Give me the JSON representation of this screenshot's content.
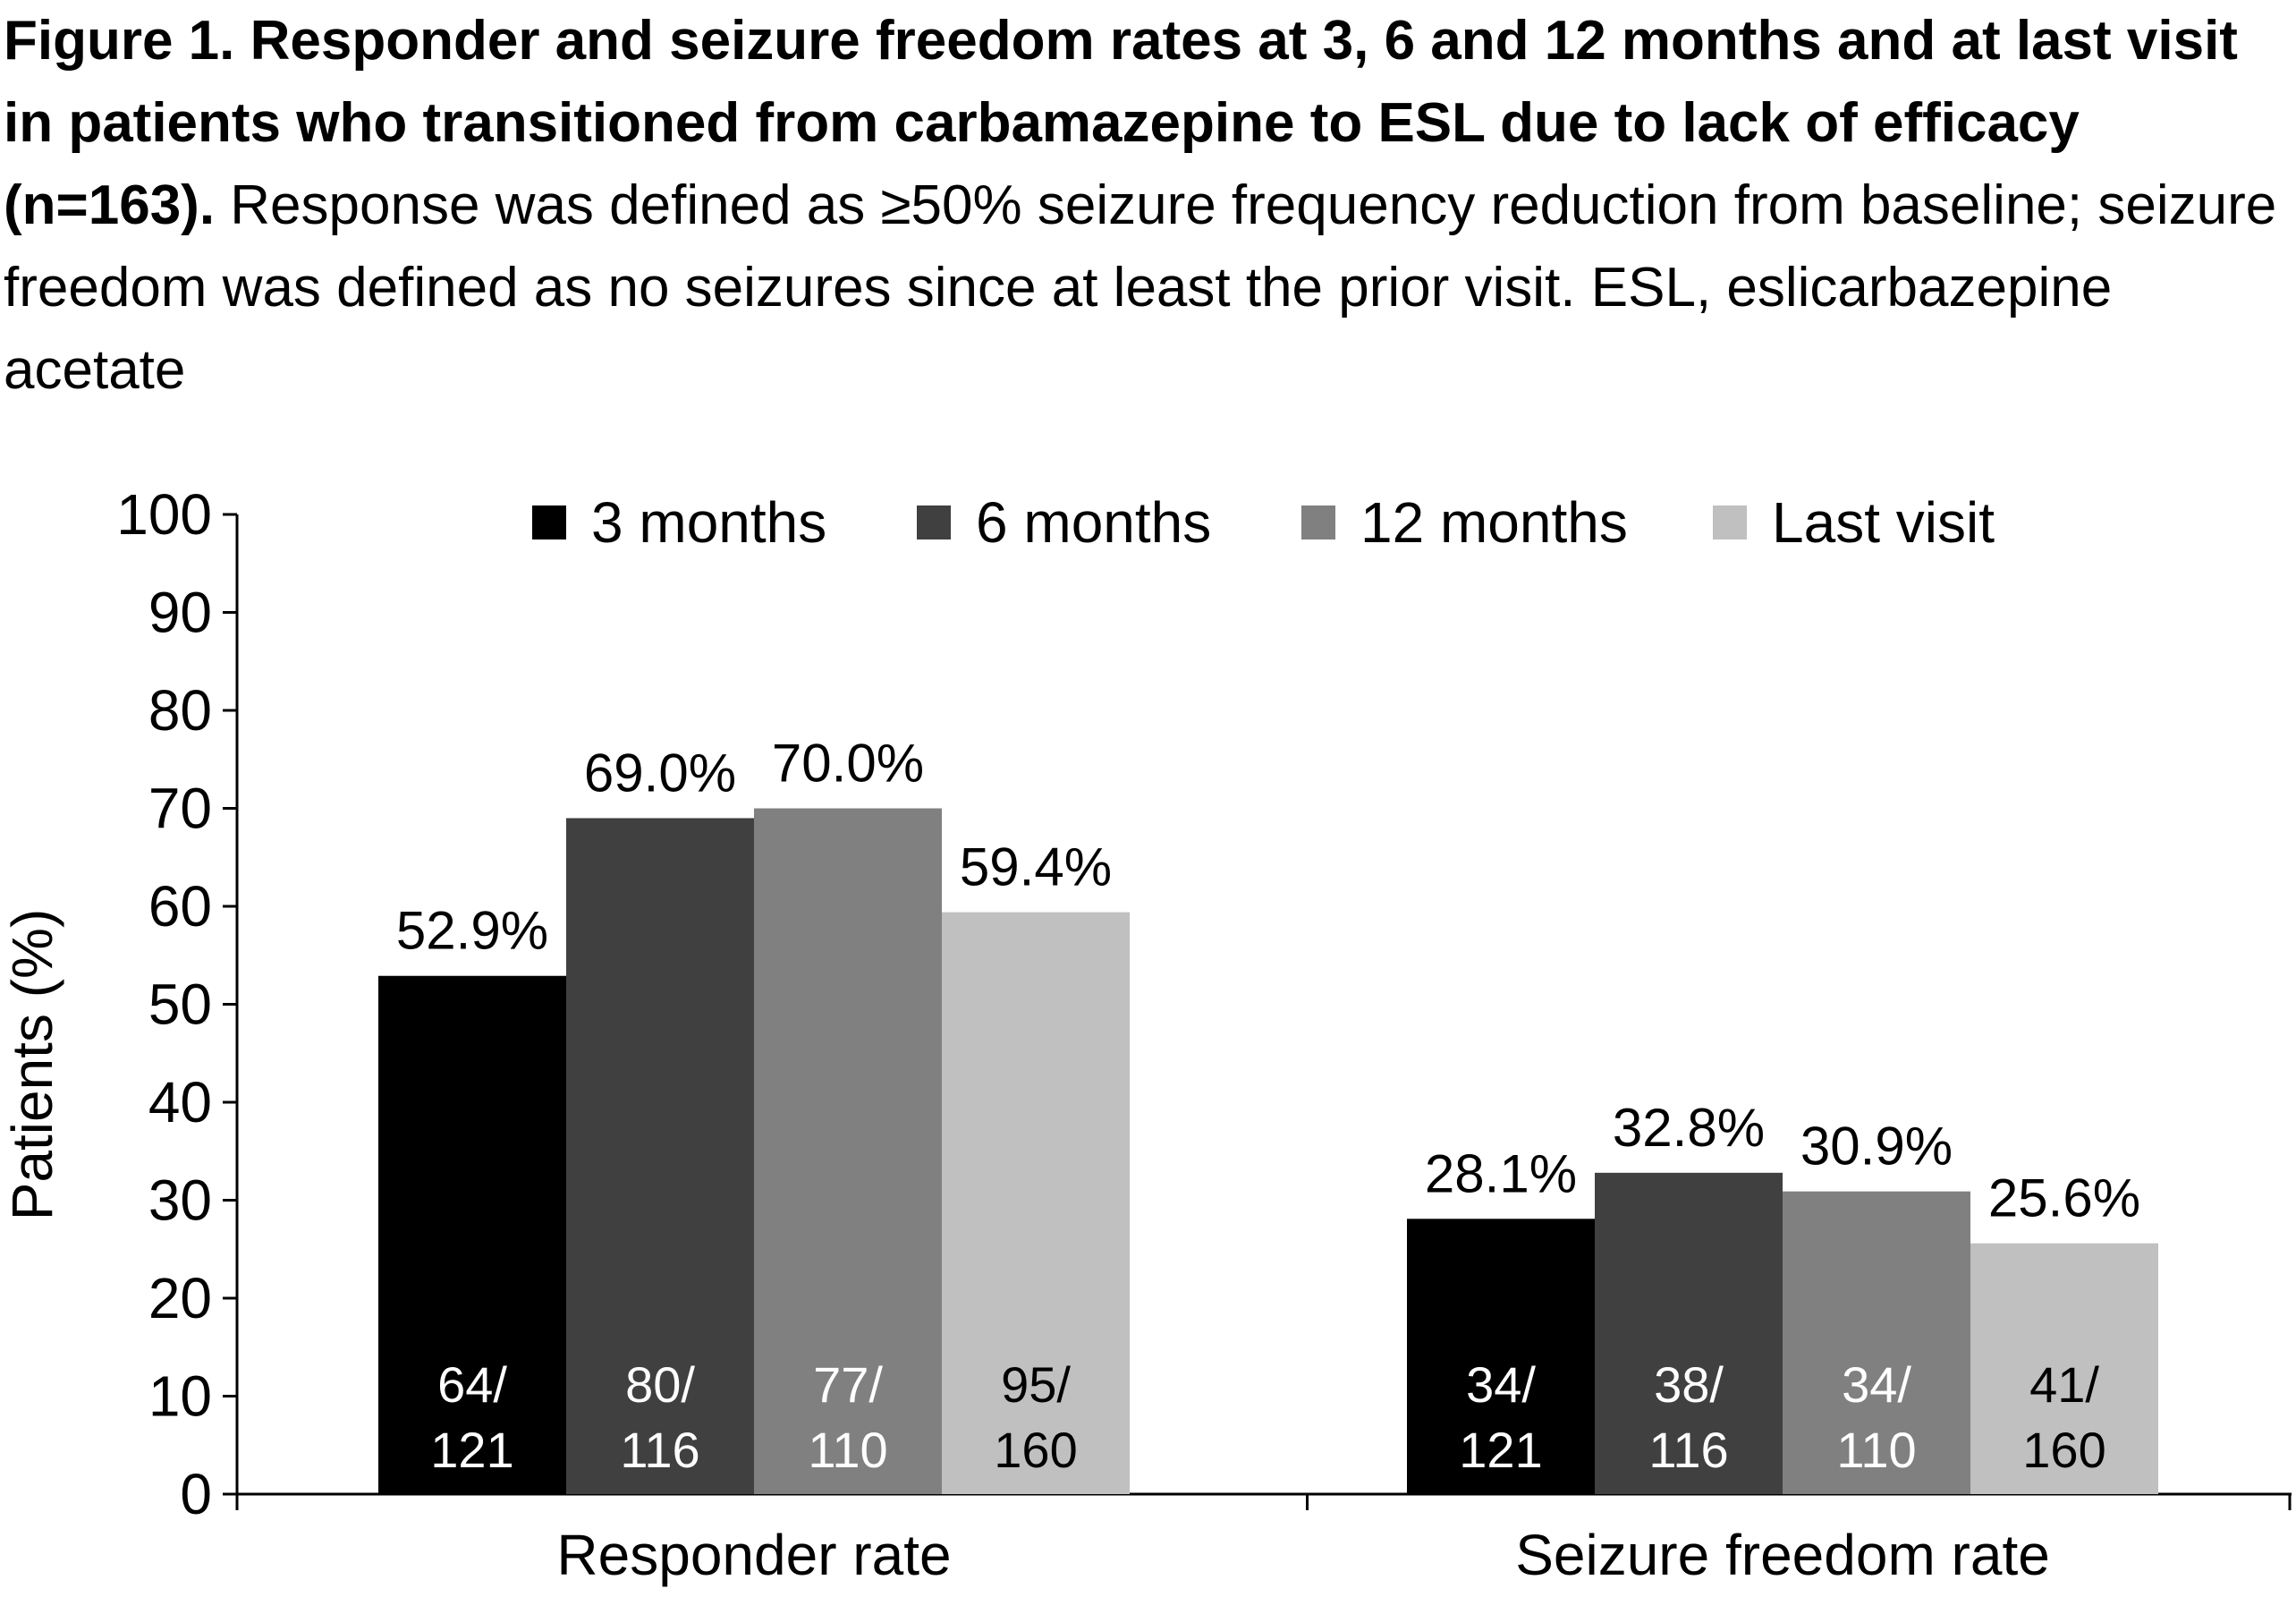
{
  "caption": {
    "bold": "Figure 1. Responder and seizure freedom rates at 3, 6 and 12 months and at last visit in patients who transitioned from carbamazepine to ESL due to lack of efficacy (n=163).",
    "normal": " Response was defined as ≥50% seizure frequency reduction from baseline; seizure freedom was defined as no seizures since at least the prior visit. ESL, eslicarbazepine acetate"
  },
  "chart_data": {
    "type": "bar",
    "categories": [
      "Responder rate",
      "Seizure freedom rate"
    ],
    "series": [
      {
        "name": "3 months",
        "color": "#000000",
        "values": [
          52.9,
          28.1
        ],
        "labels": [
          "52.9%",
          "28.1%"
        ],
        "counts": [
          [
            "64/",
            "121"
          ],
          [
            "34/",
            "121"
          ]
        ]
      },
      {
        "name": "6 months",
        "color": "#404040",
        "values": [
          69.0,
          32.8
        ],
        "labels": [
          "69.0%",
          "32.8%"
        ],
        "counts": [
          [
            "80/",
            "116"
          ],
          [
            "38/",
            "116"
          ]
        ]
      },
      {
        "name": "12 months",
        "color": "#808080",
        "values": [
          70.0,
          30.9
        ],
        "labels": [
          "70.0%",
          "30.9%"
        ],
        "counts": [
          [
            "77/",
            "110"
          ],
          [
            "34/",
            "110"
          ]
        ]
      },
      {
        "name": "Last visit",
        "color": "#c0c0c0",
        "values": [
          59.4,
          25.6
        ],
        "labels": [
          "59.4%",
          "25.6%"
        ],
        "counts": [
          [
            "95/",
            "160"
          ],
          [
            "41/",
            "160"
          ]
        ]
      }
    ],
    "ylabel": "Patients (%)",
    "ylim": [
      0,
      100
    ],
    "yticks": [
      "0",
      "10",
      "20",
      "30",
      "40",
      "50",
      "60",
      "70",
      "80",
      "90",
      "100"
    ],
    "legend_position": "top",
    "grid": false
  }
}
